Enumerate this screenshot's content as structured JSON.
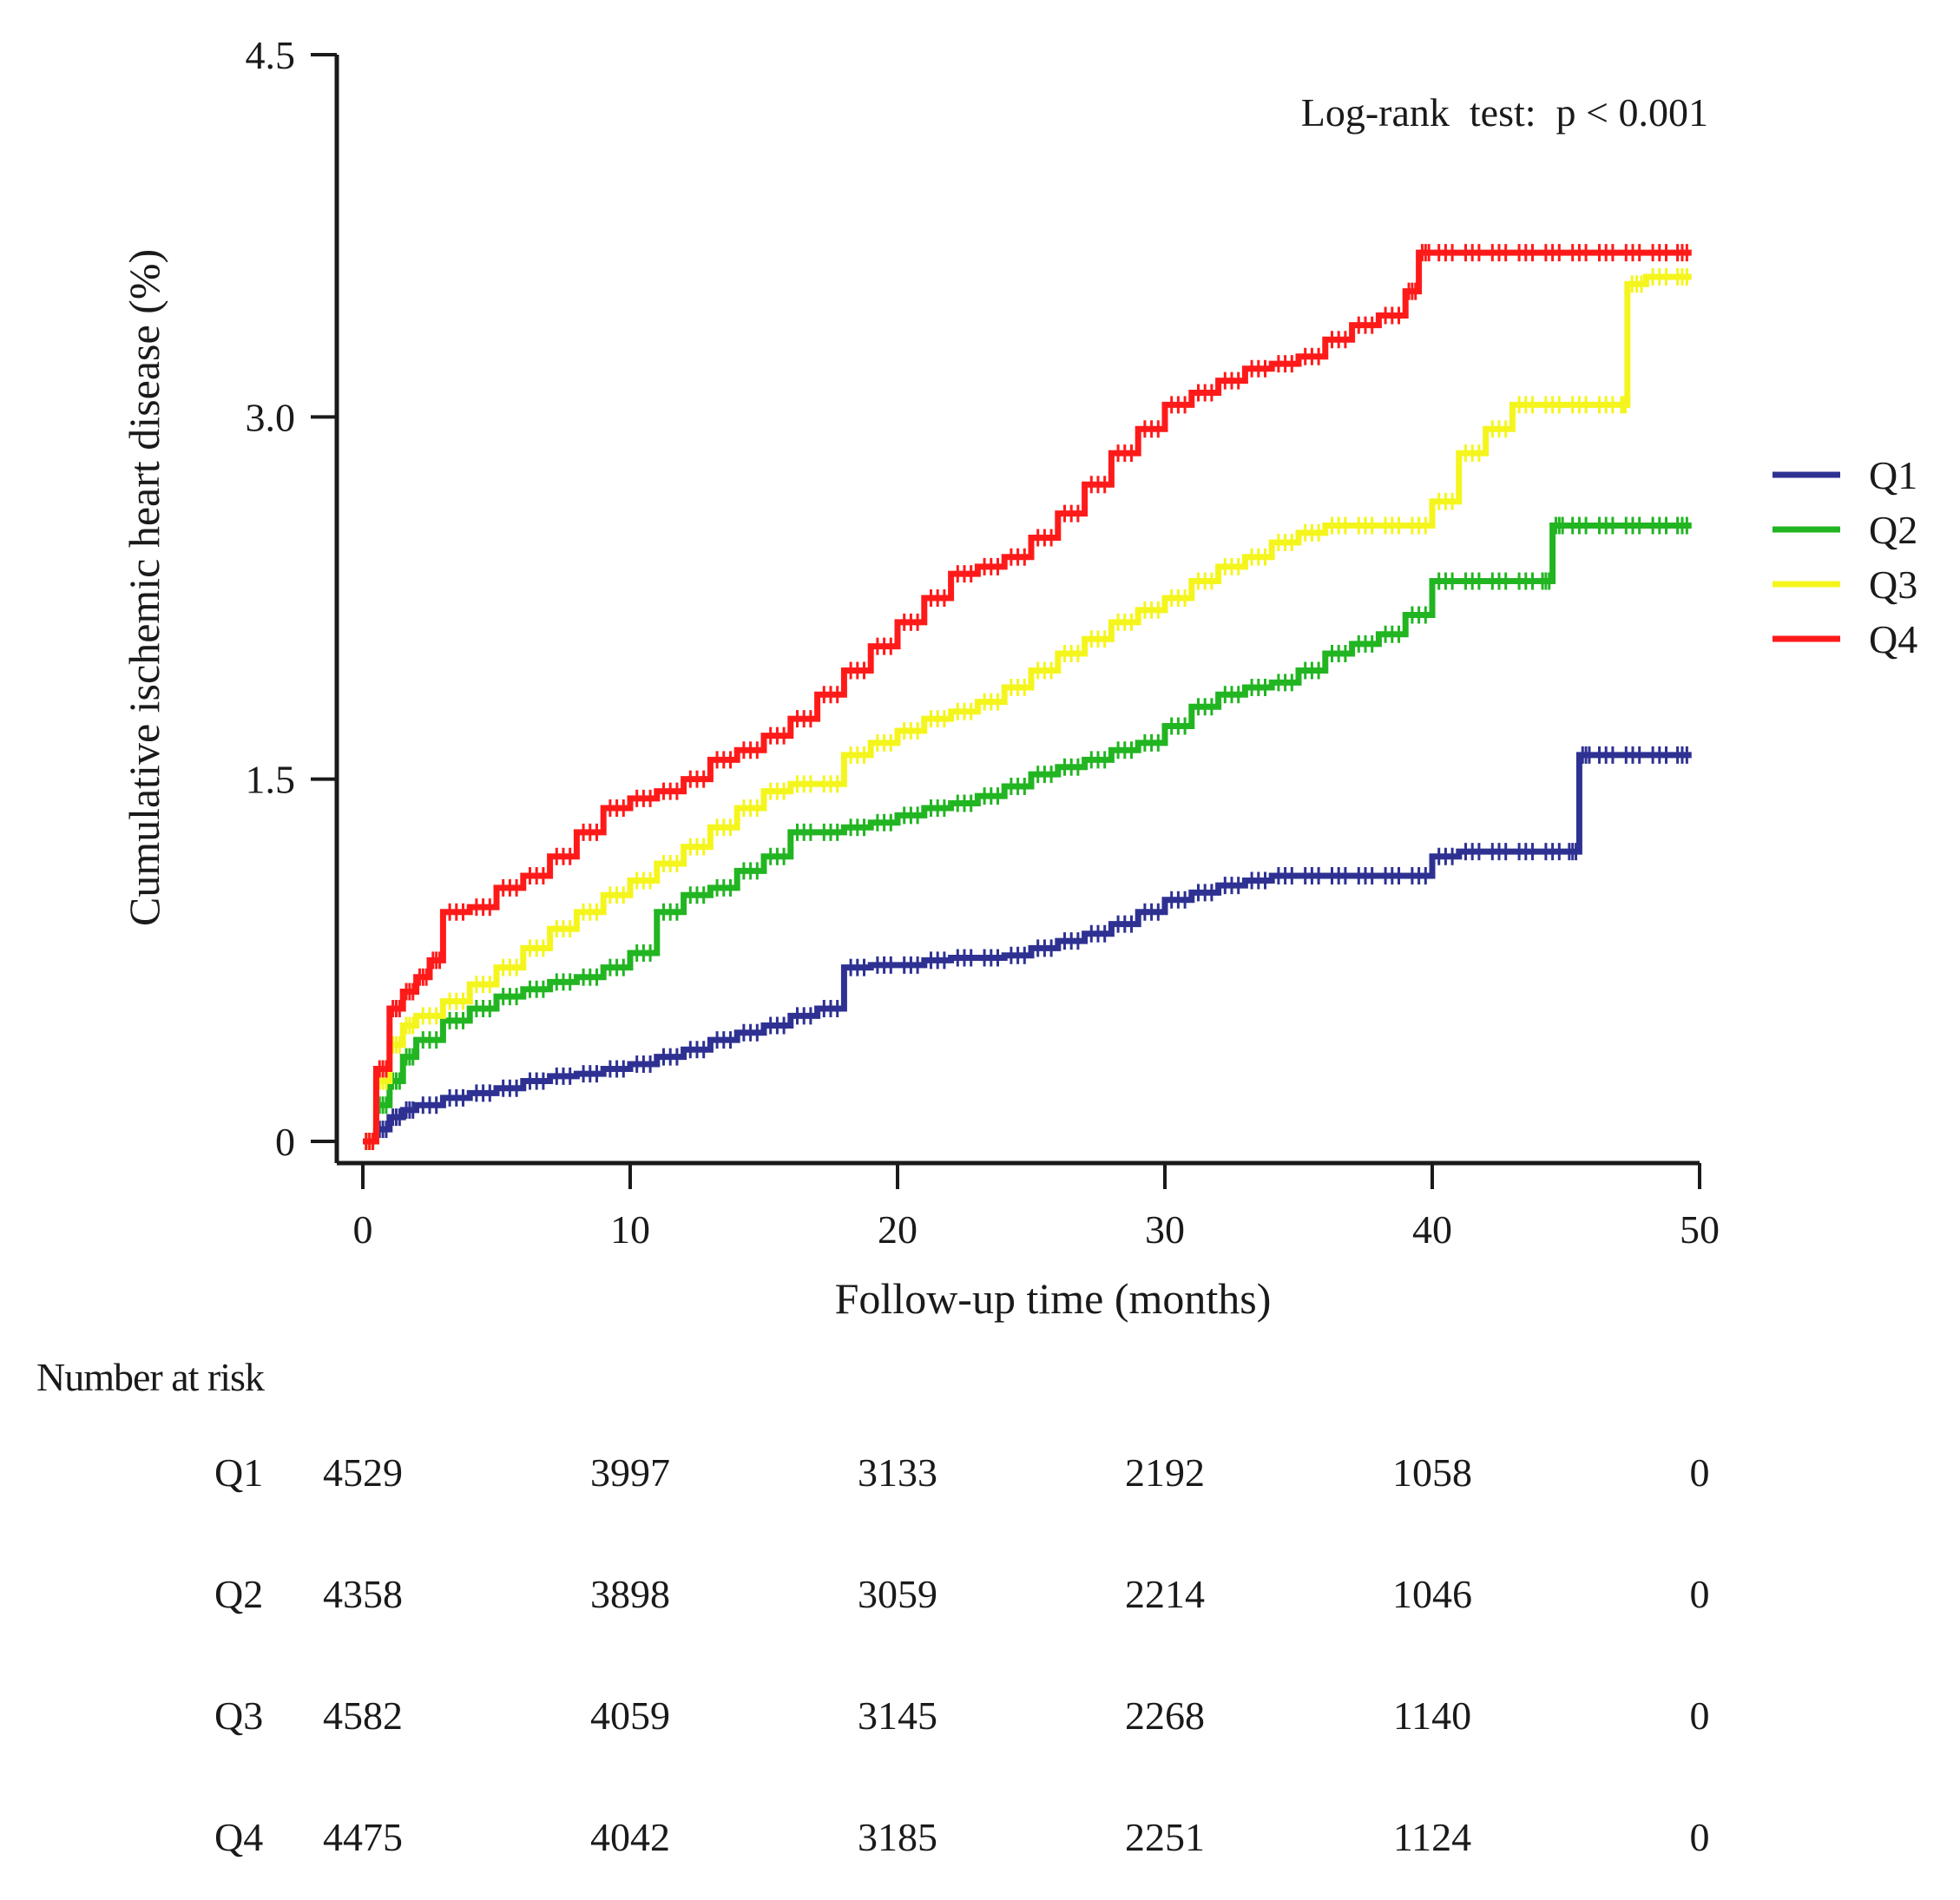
{
  "chart_data": {
    "type": "line",
    "subtype": "kaplan-meier-cumulative-incidence",
    "title": "",
    "xlabel": "Follow-up time (months)",
    "ylabel": "Cumulative ischemic heart disease (%)",
    "xlim": [
      0,
      50
    ],
    "ylim": [
      0,
      4.5
    ],
    "xticks": [
      0,
      10,
      20,
      30,
      40,
      50
    ],
    "xtick_labels": [
      "0",
      "10",
      "20",
      "30",
      "40",
      "50"
    ],
    "yticks": [
      0,
      1.5,
      3.0,
      4.5
    ],
    "ytick_labels": [
      "0",
      "1.5",
      "3.0",
      "4.5"
    ],
    "grid": false,
    "legend_position": "right",
    "annotation": "Log-rank  test:  p < 0.001",
    "series": [
      {
        "name": "Q1",
        "color": "#2e3192",
        "x": [
          0,
          0.5,
          1,
          1.5,
          2,
          3,
          4,
          5,
          6,
          7,
          8,
          9,
          10,
          11,
          12,
          13,
          14,
          15,
          16,
          17,
          18,
          19,
          20,
          21,
          22,
          23,
          24,
          25,
          26,
          27,
          28,
          29,
          30,
          31,
          32,
          33,
          34,
          35,
          36,
          37,
          38,
          39,
          40,
          41,
          42,
          43,
          44,
          45,
          45.5,
          46,
          47,
          48,
          49,
          49.7
        ],
        "values": [
          0,
          0.05,
          0.1,
          0.13,
          0.15,
          0.18,
          0.2,
          0.22,
          0.25,
          0.27,
          0.28,
          0.3,
          0.32,
          0.35,
          0.38,
          0.42,
          0.45,
          0.48,
          0.52,
          0.55,
          0.72,
          0.73,
          0.73,
          0.75,
          0.76,
          0.76,
          0.77,
          0.8,
          0.83,
          0.86,
          0.9,
          0.95,
          1.0,
          1.03,
          1.06,
          1.08,
          1.1,
          1.1,
          1.1,
          1.1,
          1.1,
          1.1,
          1.18,
          1.2,
          1.2,
          1.2,
          1.2,
          1.2,
          1.6,
          1.6,
          1.6,
          1.6,
          1.6,
          1.6
        ]
      },
      {
        "name": "Q2",
        "color": "#22b522",
        "x": [
          0,
          0.5,
          1,
          1.5,
          2,
          3,
          4,
          5,
          6,
          7,
          8,
          9,
          10,
          11,
          12,
          13,
          14,
          15,
          16,
          17,
          18,
          19,
          20,
          21,
          22,
          23,
          24,
          25,
          26,
          27,
          28,
          29,
          30,
          31,
          32,
          33,
          34,
          35,
          36,
          37,
          38,
          39,
          40,
          41,
          42,
          43,
          44,
          44.5,
          45,
          46,
          47,
          48,
          49,
          49.7
        ],
        "values": [
          0,
          0.15,
          0.25,
          0.35,
          0.42,
          0.5,
          0.55,
          0.6,
          0.63,
          0.66,
          0.68,
          0.72,
          0.78,
          0.95,
          1.02,
          1.05,
          1.12,
          1.18,
          1.28,
          1.28,
          1.3,
          1.32,
          1.35,
          1.38,
          1.4,
          1.43,
          1.47,
          1.52,
          1.55,
          1.58,
          1.62,
          1.65,
          1.72,
          1.8,
          1.85,
          1.88,
          1.9,
          1.95,
          2.02,
          2.06,
          2.1,
          2.18,
          2.32,
          2.32,
          2.32,
          2.32,
          2.32,
          2.55,
          2.55,
          2.55,
          2.55,
          2.55,
          2.55,
          2.55
        ]
      },
      {
        "name": "Q3",
        "color": "#f5f51e",
        "x": [
          0,
          0.5,
          1,
          1.5,
          2,
          3,
          4,
          5,
          6,
          7,
          8,
          9,
          10,
          11,
          12,
          13,
          14,
          15,
          16,
          17,
          18,
          19,
          20,
          21,
          22,
          23,
          24,
          25,
          26,
          27,
          28,
          29,
          30,
          31,
          32,
          33,
          34,
          35,
          36,
          37,
          38,
          39,
          40,
          41,
          42,
          43,
          44,
          45,
          46,
          47,
          47.3,
          48,
          49,
          49.7
        ],
        "values": [
          0,
          0.25,
          0.4,
          0.48,
          0.52,
          0.58,
          0.65,
          0.72,
          0.8,
          0.88,
          0.95,
          1.02,
          1.08,
          1.15,
          1.22,
          1.3,
          1.38,
          1.45,
          1.48,
          1.48,
          1.6,
          1.65,
          1.7,
          1.75,
          1.78,
          1.82,
          1.88,
          1.95,
          2.02,
          2.08,
          2.15,
          2.2,
          2.25,
          2.32,
          2.38,
          2.42,
          2.48,
          2.52,
          2.55,
          2.55,
          2.55,
          2.55,
          2.65,
          2.85,
          2.95,
          3.05,
          3.05,
          3.05,
          3.05,
          3.05,
          3.55,
          3.58,
          3.58,
          3.58
        ]
      },
      {
        "name": "Q4",
        "color": "#ff1a1a",
        "x": [
          0,
          0.5,
          1,
          1.5,
          2,
          2.5,
          3,
          4,
          5,
          6,
          7,
          8,
          9,
          10,
          11,
          12,
          13,
          14,
          15,
          16,
          17,
          18,
          19,
          20,
          21,
          22,
          23,
          24,
          25,
          26,
          27,
          28,
          29,
          30,
          31,
          32,
          33,
          34,
          35,
          36,
          37,
          38,
          39,
          39.5,
          40,
          41,
          42,
          43,
          44,
          45,
          46,
          47,
          48,
          49,
          49.7
        ],
        "values": [
          0,
          0.3,
          0.55,
          0.62,
          0.68,
          0.75,
          0.95,
          0.97,
          1.05,
          1.1,
          1.18,
          1.28,
          1.38,
          1.42,
          1.45,
          1.5,
          1.58,
          1.62,
          1.68,
          1.75,
          1.85,
          1.95,
          2.05,
          2.15,
          2.25,
          2.35,
          2.38,
          2.42,
          2.5,
          2.6,
          2.72,
          2.85,
          2.95,
          3.05,
          3.1,
          3.15,
          3.2,
          3.22,
          3.25,
          3.32,
          3.38,
          3.42,
          3.52,
          3.68,
          3.68,
          3.68,
          3.68,
          3.68,
          3.68,
          3.68,
          3.68,
          3.68,
          3.68,
          3.68,
          3.68
        ]
      }
    ]
  },
  "risk_table": {
    "title": "Number at risk",
    "time_points": [
      0,
      10,
      20,
      30,
      40,
      50
    ],
    "rows": [
      {
        "group": "Q1",
        "values": [
          "4529",
          "3997",
          "3133",
          "2192",
          "1058",
          "0"
        ]
      },
      {
        "group": "Q2",
        "values": [
          "4358",
          "3898",
          "3059",
          "2214",
          "1046",
          "0"
        ]
      },
      {
        "group": "Q3",
        "values": [
          "4582",
          "4059",
          "3145",
          "2268",
          "1140",
          "0"
        ]
      },
      {
        "group": "Q4",
        "values": [
          "4475",
          "4042",
          "3185",
          "2251",
          "1124",
          "0"
        ]
      }
    ]
  }
}
